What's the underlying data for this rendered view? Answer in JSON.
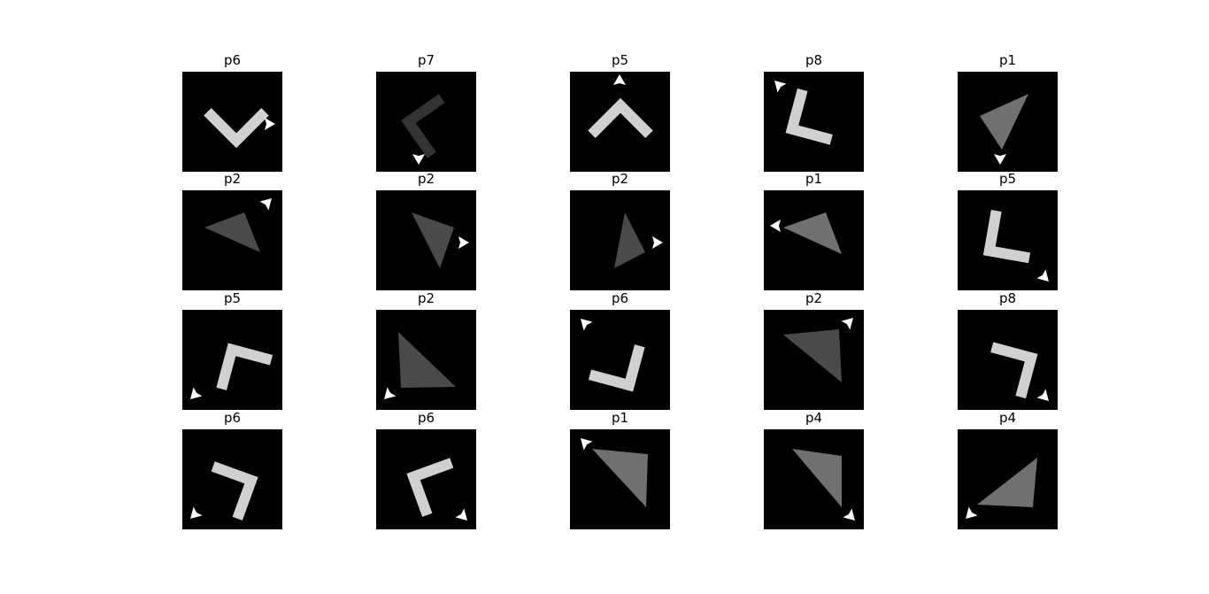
{
  "colors": {
    "background": "#ffffff",
    "panel": "#000000",
    "marker": "#ffffff",
    "shape_light": "#d0d0d0",
    "shape_mid": "#707070",
    "shape_dark": "#4a4a4a",
    "shape_darker": "#333333"
  },
  "panels": [
    {
      "title": "p6",
      "shape": {
        "kind": "chevron",
        "shade": "light",
        "rotation": -135
      },
      "marker": {
        "direction": "east",
        "corner": "right"
      }
    },
    {
      "title": "p7",
      "shape": {
        "kind": "chevron",
        "shade": "darker",
        "rotation": -35
      },
      "marker": {
        "direction": "south",
        "corner": "bottom"
      }
    },
    {
      "title": "p5",
      "shape": {
        "kind": "chevron",
        "shade": "light",
        "rotation": 45
      },
      "marker": {
        "direction": "north",
        "corner": "top"
      }
    },
    {
      "title": "p8",
      "shape": {
        "kind": "chevron",
        "shade": "light",
        "rotation": -75
      },
      "marker": {
        "direction": "north-west",
        "corner": "top-left"
      }
    },
    {
      "title": "p1",
      "shape": {
        "kind": "triangle",
        "shade": "mid",
        "rotation": 0
      },
      "marker": {
        "direction": "south",
        "corner": "bottom"
      }
    },
    {
      "title": "p2",
      "shape": {
        "kind": "triangle",
        "shade": "dark",
        "rotation": 0
      },
      "marker": {
        "direction": "north-east",
        "corner": "top-right"
      }
    },
    {
      "title": "p2",
      "shape": {
        "kind": "triangle",
        "shade": "dark",
        "rotation": 0
      },
      "marker": {
        "direction": "east",
        "corner": "right"
      }
    },
    {
      "title": "p2",
      "shape": {
        "kind": "triangle",
        "shade": "dark",
        "rotation": 0
      },
      "marker": {
        "direction": "east",
        "corner": "right"
      }
    },
    {
      "title": "p1",
      "shape": {
        "kind": "triangle",
        "shade": "mid",
        "rotation": 0
      },
      "marker": {
        "direction": "west",
        "corner": "left"
      }
    },
    {
      "title": "p5",
      "shape": {
        "kind": "chevron",
        "shade": "light",
        "rotation": -80
      },
      "marker": {
        "direction": "south-east",
        "corner": "bottom-right"
      }
    },
    {
      "title": "p5",
      "shape": {
        "kind": "chevron",
        "shade": "light",
        "rotation": 15
      },
      "marker": {
        "direction": "south-west",
        "corner": "bottom-left"
      }
    },
    {
      "title": "p2",
      "shape": {
        "kind": "triangle",
        "shade": "dark",
        "rotation": 0
      },
      "marker": {
        "direction": "south-west",
        "corner": "bottom-left"
      }
    },
    {
      "title": "p6",
      "shape": {
        "kind": "chevron",
        "shade": "light",
        "rotation": -165
      },
      "marker": {
        "direction": "north-west",
        "corner": "top-left"
      }
    },
    {
      "title": "p2",
      "shape": {
        "kind": "triangle",
        "shade": "dark",
        "rotation": 0
      },
      "marker": {
        "direction": "north-east",
        "corner": "top-right"
      }
    },
    {
      "title": "p8",
      "shape": {
        "kind": "chevron",
        "shade": "light",
        "rotation": 105
      },
      "marker": {
        "direction": "south-east",
        "corner": "bottom-right"
      }
    },
    {
      "title": "p6",
      "shape": {
        "kind": "chevron",
        "shade": "light",
        "rotation": 110
      },
      "marker": {
        "direction": "south-west",
        "corner": "bottom-left"
      }
    },
    {
      "title": "p6",
      "shape": {
        "kind": "chevron",
        "shade": "light",
        "rotation": -20
      },
      "marker": {
        "direction": "south-east",
        "corner": "bottom-right"
      }
    },
    {
      "title": "p1",
      "shape": {
        "kind": "triangle",
        "shade": "mid",
        "rotation": 0
      },
      "marker": {
        "direction": "north-west",
        "corner": "top-left"
      }
    },
    {
      "title": "p4",
      "shape": {
        "kind": "triangle",
        "shade": "mid",
        "rotation": 0
      },
      "marker": {
        "direction": "south-east",
        "corner": "bottom-right"
      }
    },
    {
      "title": "p4",
      "shape": {
        "kind": "triangle",
        "shade": "mid",
        "rotation": 0
      },
      "marker": {
        "direction": "south-west",
        "corner": "bottom-left"
      }
    }
  ]
}
